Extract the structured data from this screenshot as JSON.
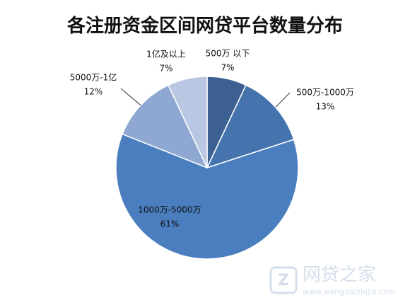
{
  "chart_data": {
    "type": "pie",
    "title": "各注册资金区间网贷平台数量分布",
    "categories": [
      "500万 以下",
      "500万-1000万",
      "1000万-5000万",
      "5000万-1亿",
      "1亿及以上"
    ],
    "values": [
      7,
      13,
      61,
      12,
      7
    ],
    "value_labels": [
      "7%",
      "13%",
      "61%",
      "12%",
      "7%"
    ],
    "colors": [
      "#3b6091",
      "#4473ad",
      "#4a7ebf",
      "#8ea8d2",
      "#b9c7e2"
    ]
  },
  "watermark": {
    "name": "网贷之家",
    "url": "www.wangdaizhijia.com"
  }
}
